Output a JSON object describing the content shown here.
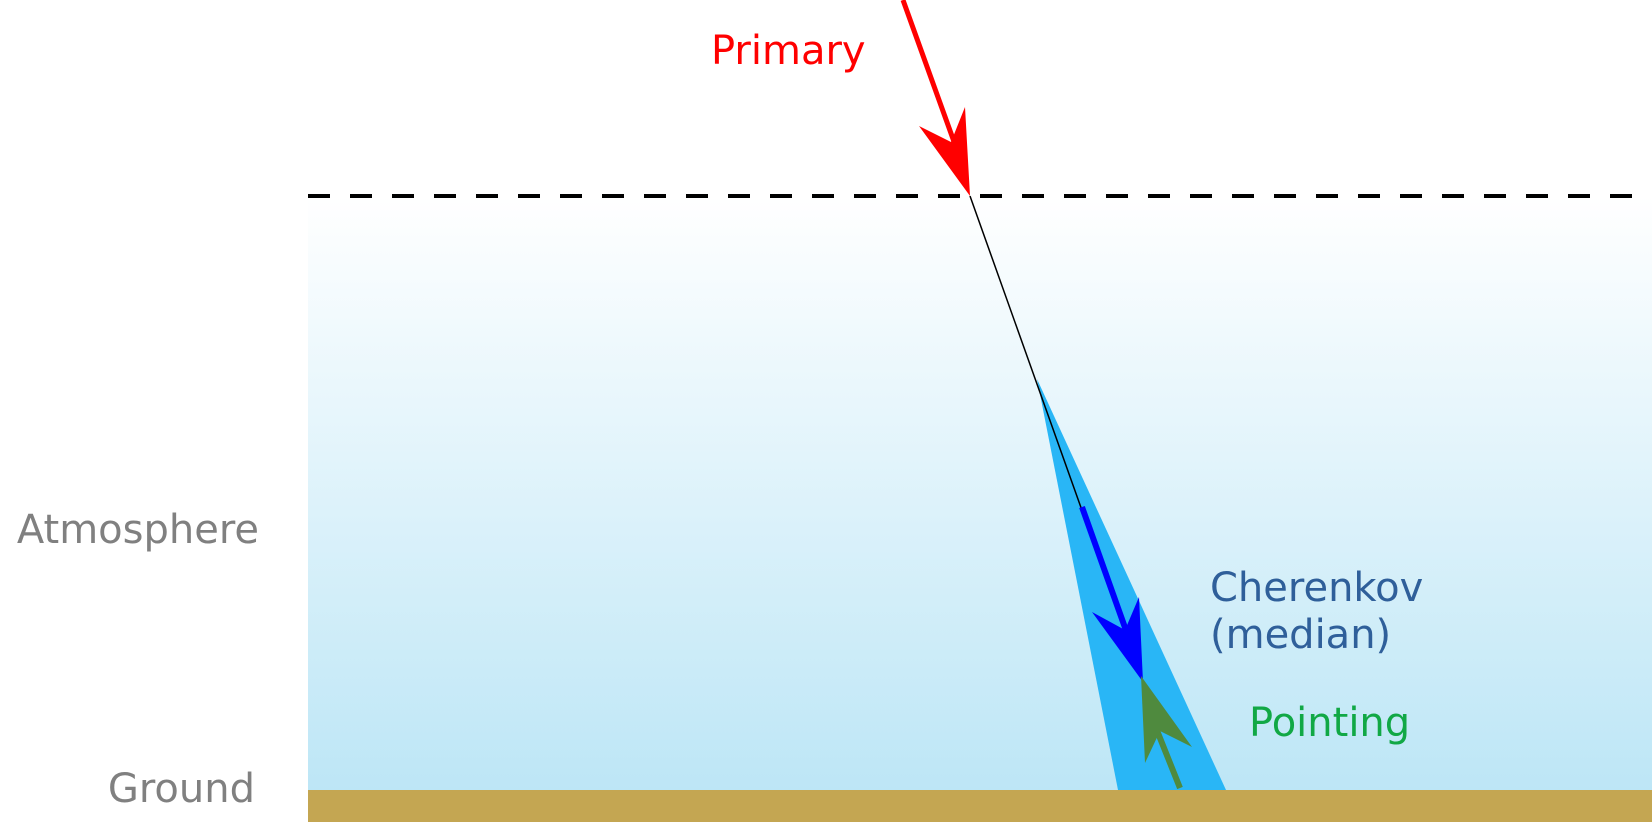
{
  "labels": {
    "atmosphere": "Atmosphere",
    "ground": "Ground",
    "primary": "Primary",
    "cherenkov_line1": "Cherenkov",
    "cherenkov_line2": "(median)",
    "pointing": "Pointing"
  },
  "colors": {
    "primary": "#ff0000",
    "cherenkov_label": "#2f5f9a",
    "cherenkov_arrow": "#0000ff",
    "cone": "#29b6f6",
    "pointing_label": "#11a845",
    "pointing_arrow": "#4f8a3e",
    "ground": "#c4a652",
    "side_labels": "#808080",
    "atmosphere_top": "#ffffff",
    "atmosphere_bottom": "#bde6f6"
  },
  "icons": {
    "primary_arrow": "arrow-down-icon",
    "cherenkov_arrow": "arrow-down-icon",
    "pointing_arrow": "arrow-up-icon"
  }
}
